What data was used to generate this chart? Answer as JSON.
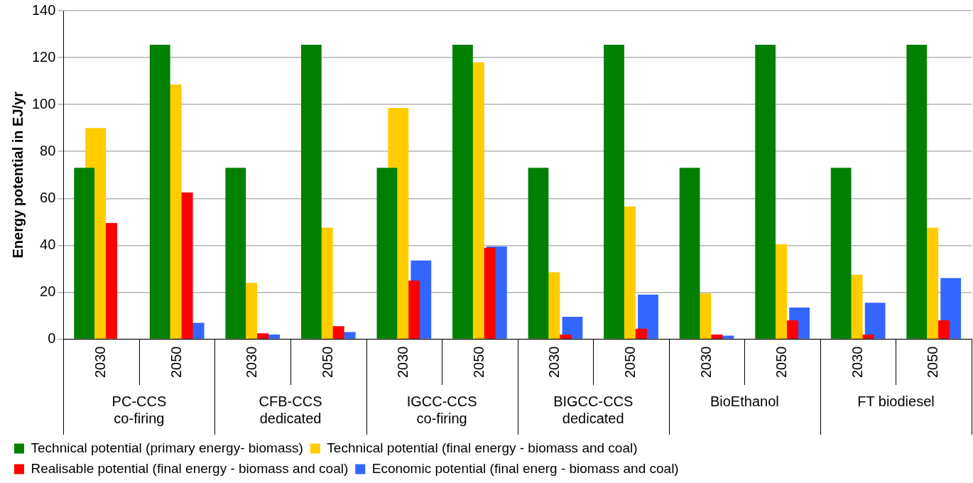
{
  "chart_data": {
    "type": "bar",
    "ylabel": "Energy potential in EJ/yr",
    "categories": [
      "2030",
      "2050",
      "2030",
      "2050",
      "2030",
      "2050",
      "2030",
      "2050",
      "2030",
      "2050",
      "2030",
      "2050"
    ],
    "series": [
      {
        "name": "Technical potential (primary energy- biomass)",
        "color": "#008000",
        "values": [
          73,
          125.5,
          73,
          125.5,
          73,
          125.5,
          73,
          125.5,
          73,
          125.5,
          73,
          125.5
        ]
      },
      {
        "name": "Technical potential (final energy - biomass and coal)",
        "color": "#ffcc00",
        "values": [
          90,
          108.5,
          24,
          47.5,
          98.5,
          118,
          28.5,
          56.5,
          19.5,
          40.5,
          27.5,
          47.5
        ]
      },
      {
        "name": "Realisable potential (final energy - biomass and coal)",
        "color": "#ff0000",
        "values": [
          49.5,
          62.5,
          2.5,
          5.5,
          25,
          39,
          2,
          4.5,
          2,
          8,
          2,
          8
        ]
      },
      {
        "name": "Economic potential (final energ - biomass and coal)",
        "color": "#3366ff",
        "values": [
          null,
          7,
          2,
          3,
          33.5,
          39.5,
          9.5,
          19,
          1.5,
          13.5,
          15.5,
          26
        ]
      }
    ],
    "annotations": [
      "PC-CCS\nco-firing",
      "CFB-CCS\ndedicated",
      "IGCC-CCS\nco-firing",
      "BIGCC-CCS\ndedicated",
      "BioEthanol",
      "FT biodiesel"
    ],
    "ylim": [
      0,
      140
    ],
    "yticks": [
      0,
      20,
      40,
      60,
      80,
      100,
      120,
      140
    ],
    "grid": "y",
    "legend": "bottom"
  }
}
